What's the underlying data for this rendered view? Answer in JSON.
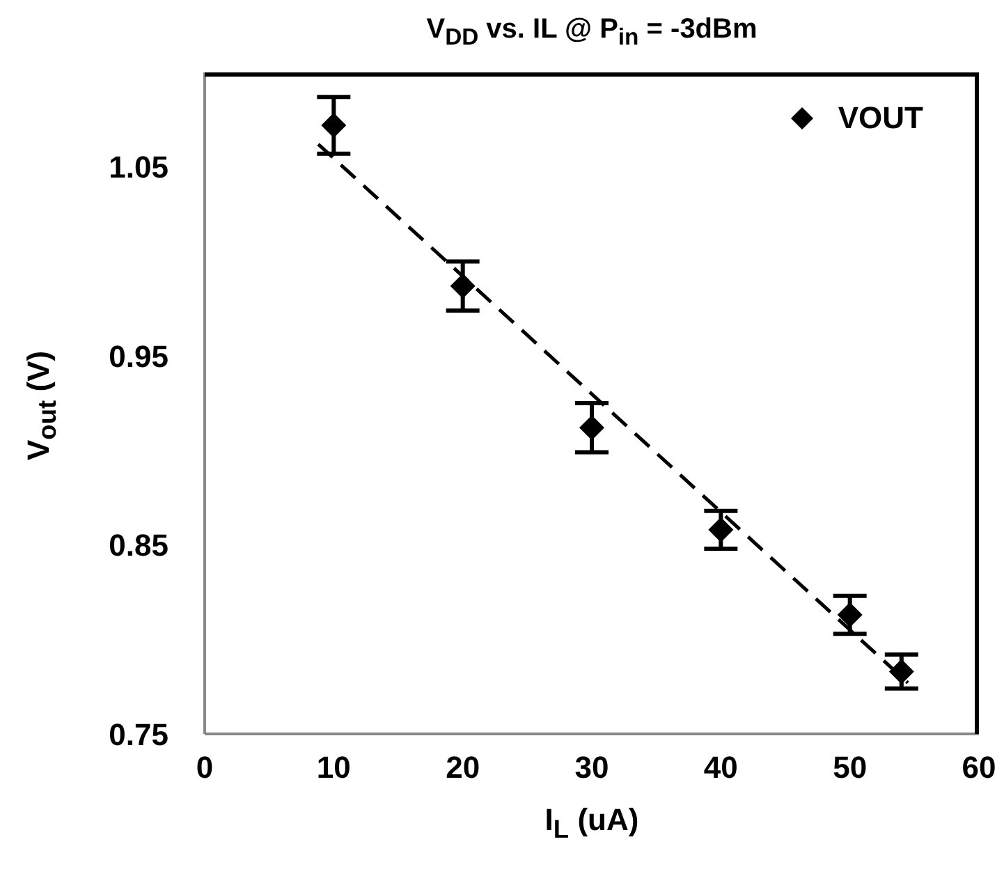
{
  "chart_data": {
    "type": "scatter",
    "title": "V$_{DD}$ vs. IL @ P$_{in}$ = -3dBm",
    "xlabel": "I$_{L}$ (uA)",
    "ylabel": "V$_{out}$ (V)",
    "x": [
      10,
      20,
      30,
      40,
      50,
      54
    ],
    "series": [
      {
        "name": "VOUT",
        "color": "#000000",
        "marker": "diamond",
        "values": [
          1.072,
          0.987,
          0.912,
          0.858,
          0.813,
          0.783
        ],
        "errors": [
          0.015,
          0.013,
          0.013,
          0.01,
          0.01,
          0.009
        ]
      },
      {
        "type": "line",
        "color": "#000000",
        "marker": "none",
        "line_style": "dashed",
        "x": [
          8.8,
          54.5
        ],
        "values": [
          1.062,
          0.777
        ]
      }
    ],
    "xlim": [
      0,
      60
    ],
    "xticks": [
      0,
      10,
      20,
      30,
      40,
      50,
      60
    ],
    "ylim": [
      0.75,
      1.1
    ],
    "yticks": [
      0.75,
      0.85,
      0.95,
      1.05
    ],
    "grid": false,
    "legend": "top right"
  }
}
